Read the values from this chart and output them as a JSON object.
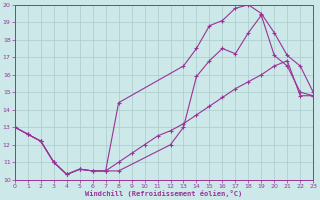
{
  "bg_color": "#cce8e8",
  "grid_color": "#aacccc",
  "line_color": "#993399",
  "xlabel": "Windchill (Refroidissement éolien,°C)",
  "xlim": [
    0,
    23
  ],
  "ylim": [
    10,
    20
  ],
  "xticks": [
    0,
    1,
    2,
    3,
    4,
    5,
    6,
    7,
    8,
    9,
    10,
    11,
    12,
    13,
    14,
    15,
    16,
    17,
    18,
    19,
    20,
    21,
    22,
    23
  ],
  "yticks": [
    10,
    11,
    12,
    13,
    14,
    15,
    16,
    17,
    18,
    19,
    20
  ],
  "curve1_x": [
    0,
    1,
    2,
    3,
    4,
    5,
    6,
    7,
    8,
    12,
    13,
    14,
    15,
    16,
    17,
    18,
    19,
    20,
    21,
    22,
    23
  ],
  "curve1_y": [
    13.0,
    12.6,
    12.2,
    11.0,
    10.3,
    10.6,
    10.5,
    10.5,
    10.5,
    12.0,
    13.0,
    15.9,
    16.8,
    17.5,
    17.2,
    18.4,
    19.4,
    17.1,
    16.5,
    15.0,
    14.8
  ],
  "curve2_x": [
    0,
    1,
    2,
    3,
    4,
    5,
    6,
    7,
    8,
    13,
    14,
    15,
    16,
    17,
    18,
    19,
    20,
    21,
    22,
    23
  ],
  "curve2_y": [
    13.0,
    12.6,
    12.2,
    11.0,
    10.3,
    10.6,
    10.5,
    10.5,
    14.4,
    16.5,
    17.5,
    18.8,
    19.1,
    19.8,
    20.0,
    19.5,
    18.4,
    17.1,
    16.5,
    15.0
  ],
  "curve3_x": [
    0,
    1,
    2,
    3,
    4,
    5,
    6,
    7,
    8,
    9,
    10,
    11,
    12,
    13,
    14,
    15,
    16,
    17,
    18,
    19,
    20,
    21,
    22,
    23
  ],
  "curve3_y": [
    13.0,
    12.6,
    12.2,
    11.0,
    10.3,
    10.6,
    10.5,
    10.5,
    11.0,
    11.5,
    12.0,
    12.5,
    12.8,
    13.2,
    13.7,
    14.2,
    14.7,
    15.2,
    15.6,
    16.0,
    16.5,
    16.8,
    14.8,
    14.8
  ],
  "lw": 0.8,
  "ms": 2.5,
  "mew": 0.8,
  "tick_fontsize": 4.5,
  "xlabel_fontsize": 5.0
}
